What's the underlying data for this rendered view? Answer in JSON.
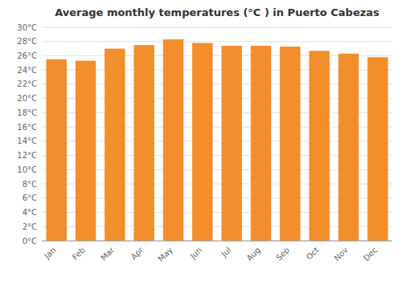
{
  "chart_data": {
    "type": "bar",
    "title": "Average monthly temperatures (°C ) in Puerto Cabezas",
    "categories": [
      "Jan",
      "Feb",
      "Mar",
      "Apr",
      "May",
      "Jun",
      "Jul",
      "Aug",
      "Sep",
      "Oct",
      "Nov",
      "Dec"
    ],
    "values": [
      25.5,
      25.3,
      27.0,
      27.5,
      28.3,
      27.8,
      27.4,
      27.4,
      27.3,
      26.7,
      26.3,
      25.8
    ],
    "ylim": [
      0,
      30
    ],
    "yticks": [
      {
        "value": 0,
        "label": "0°C"
      },
      {
        "value": 2,
        "label": "2°C"
      },
      {
        "value": 4,
        "label": "4°C"
      },
      {
        "value": 6,
        "label": "6°C"
      },
      {
        "value": 8,
        "label": "8°C"
      },
      {
        "value": 10,
        "label": "10°C"
      },
      {
        "value": 12,
        "label": "12°C"
      },
      {
        "value": 14,
        "label": "14°C"
      },
      {
        "value": 16,
        "label": "16°C"
      },
      {
        "value": 18,
        "label": "18°C"
      },
      {
        "value": 20,
        "label": "20°C"
      },
      {
        "value": 22,
        "label": "22°C"
      },
      {
        "value": 24,
        "label": "24°C"
      },
      {
        "value": 26,
        "label": "26°C"
      },
      {
        "value": 28,
        "label": "28°C"
      },
      {
        "value": 30,
        "label": "30°C"
      }
    ],
    "grid": true
  }
}
